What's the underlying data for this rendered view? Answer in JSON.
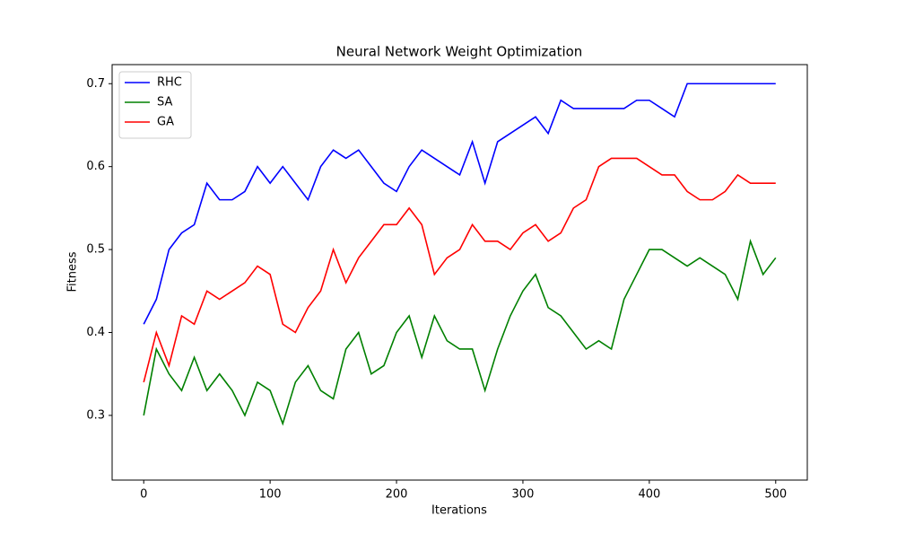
{
  "chart_data": {
    "type": "line",
    "title": "Neural Network Weight Optimization",
    "x_label": "Iterations",
    "y_label": "Fitness",
    "x": [
      0,
      10,
      20,
      30,
      40,
      50,
      60,
      70,
      80,
      90,
      100,
      110,
      120,
      130,
      140,
      150,
      160,
      170,
      180,
      190,
      200,
      210,
      220,
      230,
      240,
      250,
      260,
      270,
      280,
      290,
      300,
      310,
      320,
      330,
      340,
      350,
      360,
      370,
      380,
      390,
      400,
      410,
      420,
      430,
      440,
      450,
      460,
      470,
      480,
      490,
      500
    ],
    "series": [
      {
        "name": "RHC",
        "color": "#0000ff",
        "values": [
          0.41,
          0.44,
          0.5,
          0.52,
          0.53,
          0.58,
          0.56,
          0.56,
          0.57,
          0.6,
          0.58,
          0.6,
          0.58,
          0.56,
          0.6,
          0.62,
          0.61,
          0.62,
          0.6,
          0.58,
          0.57,
          0.6,
          0.62,
          0.61,
          0.6,
          0.59,
          0.63,
          0.58,
          0.63,
          0.64,
          0.65,
          0.66,
          0.64,
          0.68,
          0.67,
          0.67,
          0.67,
          0.67,
          0.67,
          0.68,
          0.68,
          0.67,
          0.66,
          0.7,
          0.7,
          0.7,
          0.7,
          0.7,
          0.7,
          0.7,
          0.7
        ]
      },
      {
        "name": "SA",
        "color": "#008000",
        "values": [
          0.3,
          0.38,
          0.35,
          0.33,
          0.37,
          0.33,
          0.35,
          0.33,
          0.3,
          0.34,
          0.33,
          0.29,
          0.34,
          0.36,
          0.33,
          0.32,
          0.38,
          0.4,
          0.35,
          0.36,
          0.4,
          0.42,
          0.37,
          0.42,
          0.39,
          0.38,
          0.38,
          0.33,
          0.38,
          0.42,
          0.45,
          0.47,
          0.43,
          0.42,
          0.4,
          0.38,
          0.39,
          0.38,
          0.44,
          0.47,
          0.5,
          0.5,
          0.49,
          0.48,
          0.49,
          0.48,
          0.47,
          0.44,
          0.51,
          0.47,
          0.49
        ]
      },
      {
        "name": "GA",
        "color": "#ff0000",
        "values": [
          0.34,
          0.4,
          0.36,
          0.42,
          0.41,
          0.45,
          0.44,
          0.45,
          0.46,
          0.48,
          0.47,
          0.41,
          0.4,
          0.43,
          0.45,
          0.5,
          0.46,
          0.49,
          0.51,
          0.53,
          0.53,
          0.55,
          0.53,
          0.47,
          0.49,
          0.5,
          0.53,
          0.51,
          0.51,
          0.5,
          0.52,
          0.53,
          0.51,
          0.52,
          0.55,
          0.56,
          0.6,
          0.61,
          0.61,
          0.61,
          0.6,
          0.59,
          0.59,
          0.57,
          0.56,
          0.56,
          0.57,
          0.59,
          0.58,
          0.58,
          0.58
        ]
      }
    ],
    "xlim": [
      -25,
      525
    ],
    "ylim": [
      0.222,
      0.723
    ],
    "xticks": [
      0,
      100,
      200,
      300,
      400,
      500
    ],
    "yticks": [
      0.3,
      0.4,
      0.5,
      0.6,
      0.7
    ],
    "legend": "upper left",
    "grid": false
  }
}
